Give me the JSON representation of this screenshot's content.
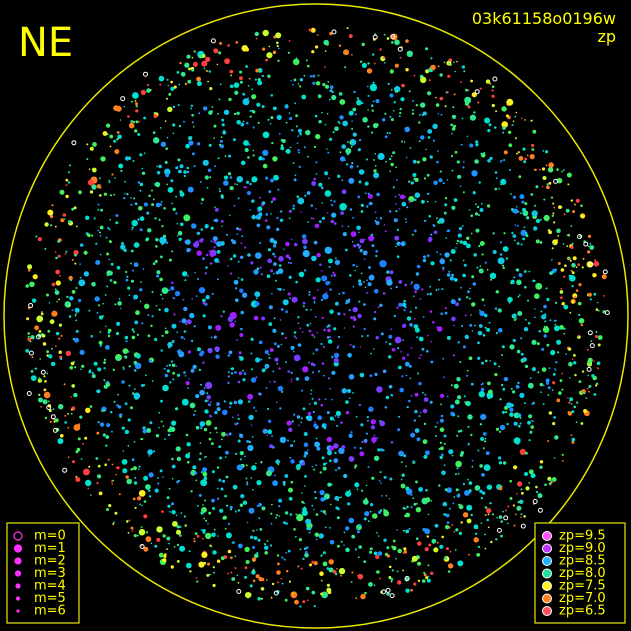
{
  "corner_label": "NE",
  "image_id": "03k61158o0196w",
  "mode": "zp",
  "magnitude_legend": [
    "m=0",
    "m=1",
    "m=2",
    "m=3",
    "m=4",
    "m=5",
    "m=6"
  ],
  "zp_legend": [
    "zp=9.5",
    "zp=9.0",
    "zp=8.5",
    "zp=8.0",
    "zp=7.5",
    "zp=7.0",
    "zp=6.5"
  ]
}
